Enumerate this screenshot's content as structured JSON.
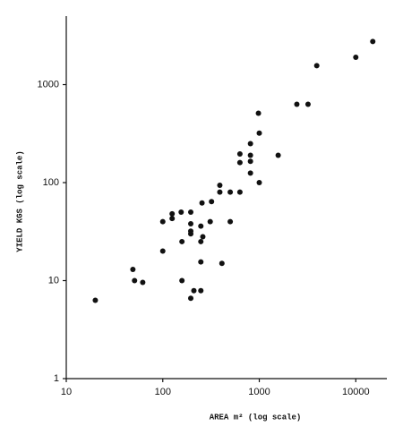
{
  "chart_data": {
    "type": "scatter",
    "x_label": "AREA m² (log scale)",
    "y_label": "YIELD KGS (log scale)",
    "xscale": "log",
    "yscale": "log",
    "xlim": [
      10,
      21000
    ],
    "ylim": [
      1,
      5000
    ],
    "xticks": [
      10,
      100,
      1000,
      10000
    ],
    "yticks": [
      1,
      10,
      100,
      1000
    ],
    "color": "#111111",
    "x": [
      20,
      49,
      51,
      62,
      100,
      100,
      125,
      125,
      155,
      158,
      158,
      195,
      195,
      195,
      195,
      195,
      210,
      248,
      248,
      248,
      248,
      255,
      260,
      310,
      320,
      390,
      390,
      410,
      500,
      500,
      630,
      630,
      630,
      810,
      810,
      810,
      810,
      980,
      1000,
      1000,
      1570,
      2450,
      3200,
      3940,
      10000,
      15000
    ],
    "values": [
      6.3,
      13,
      10,
      9.6,
      20,
      40,
      48,
      43,
      50,
      25,
      10,
      50,
      38,
      32,
      30,
      6.6,
      7.9,
      36,
      25,
      15.5,
      7.9,
      62,
      28,
      40,
      64,
      94,
      80,
      15,
      80,
      40,
      80,
      196,
      160,
      165,
      250,
      190,
      125,
      510,
      320,
      100,
      190,
      630,
      630,
      1560,
      1900,
      2750
    ]
  }
}
